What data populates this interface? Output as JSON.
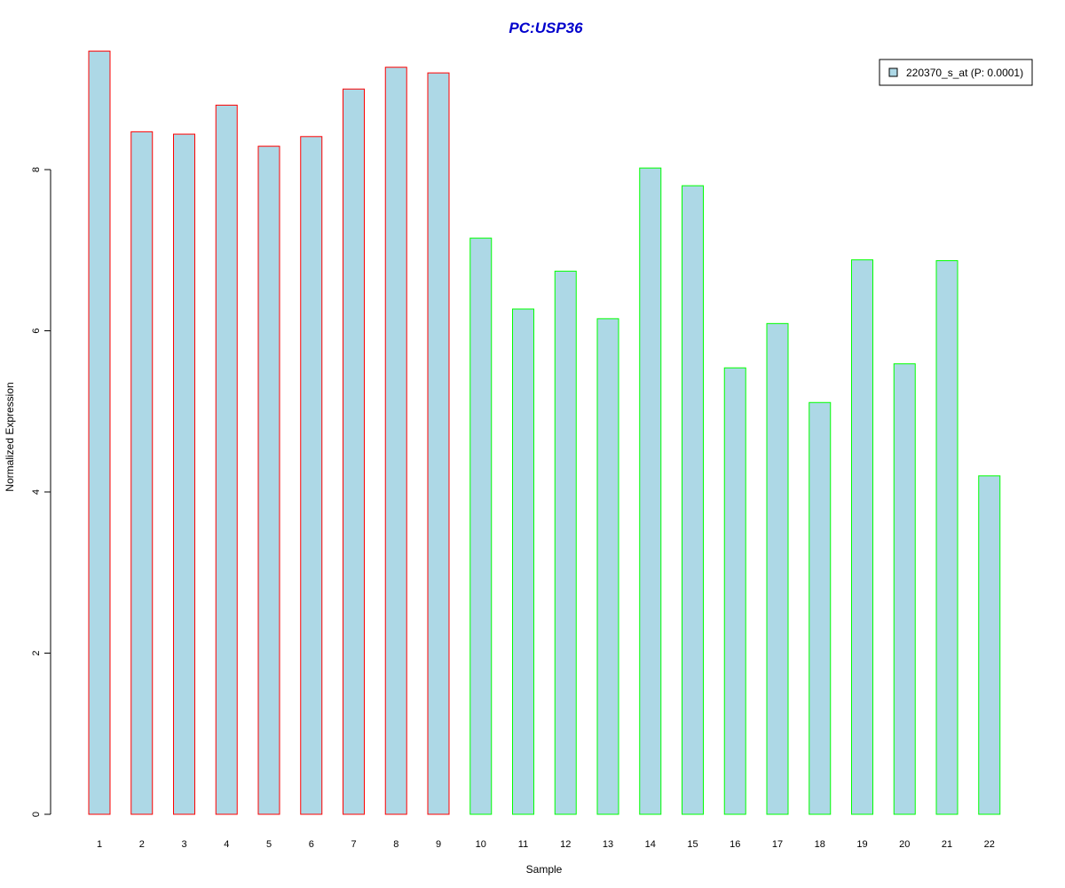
{
  "chart_data": {
    "type": "bar",
    "title": "PC:USP36",
    "xlabel": "Sample",
    "ylabel": "Normalized Expression",
    "categories": [
      "1",
      "2",
      "3",
      "4",
      "5",
      "6",
      "7",
      "8",
      "9",
      "10",
      "11",
      "12",
      "13",
      "14",
      "15",
      "16",
      "17",
      "18",
      "19",
      "20",
      "21",
      "22"
    ],
    "series": [
      {
        "name": "220370_s_at (P: 0.0001)",
        "values": [
          9.47,
          8.47,
          8.44,
          8.8,
          8.29,
          8.41,
          9.0,
          9.27,
          9.2,
          7.15,
          6.27,
          6.74,
          6.15,
          8.02,
          7.8,
          5.54,
          6.09,
          5.11,
          6.88,
          5.59,
          6.87,
          4.2
        ]
      }
    ],
    "ylim": [
      0,
      9.47
    ],
    "yticks": [
      "0",
      "2",
      "4",
      "6",
      "8"
    ],
    "grid": false,
    "legend_position": "top-right",
    "colors": {
      "title": "#0000cc",
      "bar_fill": "#add8e6",
      "group1_border": "#ff0000",
      "group2_border": "#00ff00",
      "axis": "#000000"
    },
    "bar_border_groups": [
      "group1_border",
      "group1_border",
      "group1_border",
      "group1_border",
      "group1_border",
      "group1_border",
      "group1_border",
      "group1_border",
      "group1_border",
      "group2_border",
      "group2_border",
      "group2_border",
      "group2_border",
      "group2_border",
      "group2_border",
      "group2_border",
      "group2_border",
      "group2_border",
      "group2_border",
      "group2_border",
      "group2_border",
      "group2_border"
    ]
  }
}
